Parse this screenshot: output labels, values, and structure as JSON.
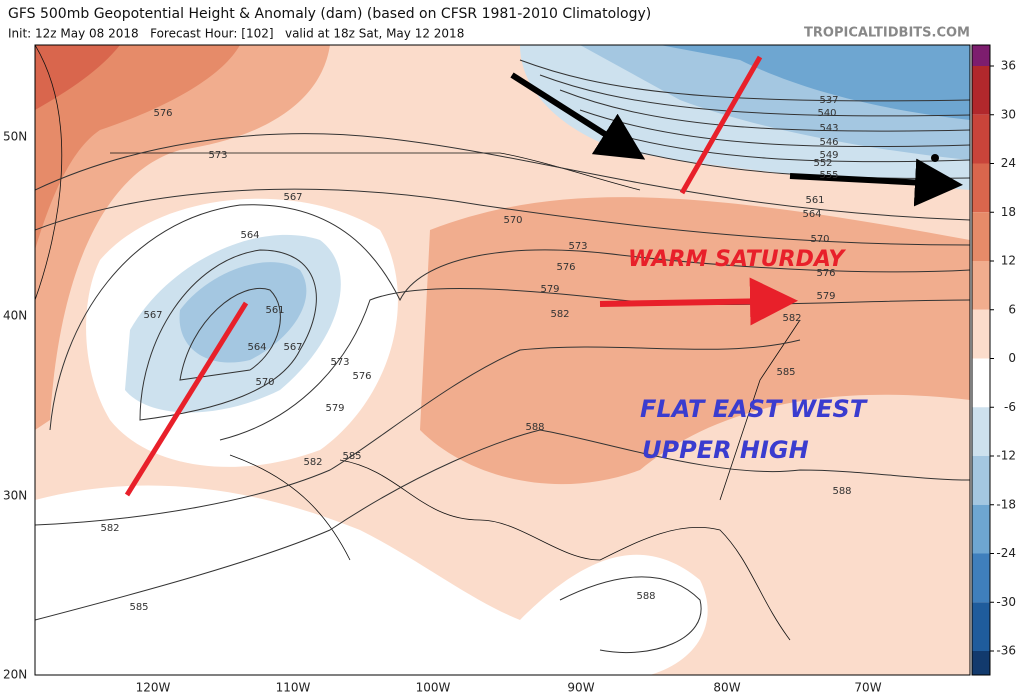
{
  "header": {
    "title": "GFS 500mb Geopotential Height & Anomaly (dam) (based on CFSR 1981-2010 Climatology)",
    "subtitle": "Init: 12z May 08 2018   Forecast Hour: [102]   valid at 18z Sat, May 12 2018",
    "source": "TROPICALTIDBITS.COM"
  },
  "annotations": [
    "WARM SATURDAY",
    "FLAT EAST WEST",
    "UPPER HIGH"
  ],
  "lat_labels": [
    "50N",
    "40N",
    "30N",
    "20N"
  ],
  "lon_labels": [
    "120W",
    "110W",
    "100W",
    "90W",
    "80W",
    "70W"
  ],
  "contour_labels": [
    "576",
    "573",
    "567",
    "564",
    "567",
    "561",
    "564",
    "567",
    "570",
    "573",
    "576",
    "579",
    "582",
    "585",
    "570",
    "573",
    "576",
    "579",
    "582",
    "588",
    "537",
    "540",
    "543",
    "546",
    "549",
    "552",
    "555",
    "561",
    "564",
    "570",
    "576",
    "579",
    "582",
    "585",
    "588",
    "588",
    "582",
    "585"
  ],
  "colorbar": {
    "ticks": [
      36,
      30,
      24,
      18,
      12,
      6,
      0,
      -6,
      -12,
      -18,
      -24,
      -30,
      -36
    ],
    "colors": [
      "#7d1d6e",
      "#b1282c",
      "#c9443a",
      "#d9664d",
      "#e68b69",
      "#f1ad8e",
      "#fbdccb",
      "#ffffff",
      "#cde1ee",
      "#a4c7e1",
      "#6ea6d1",
      "#3f7fbc",
      "#1f5c9c",
      "#123a6d"
    ]
  }
}
